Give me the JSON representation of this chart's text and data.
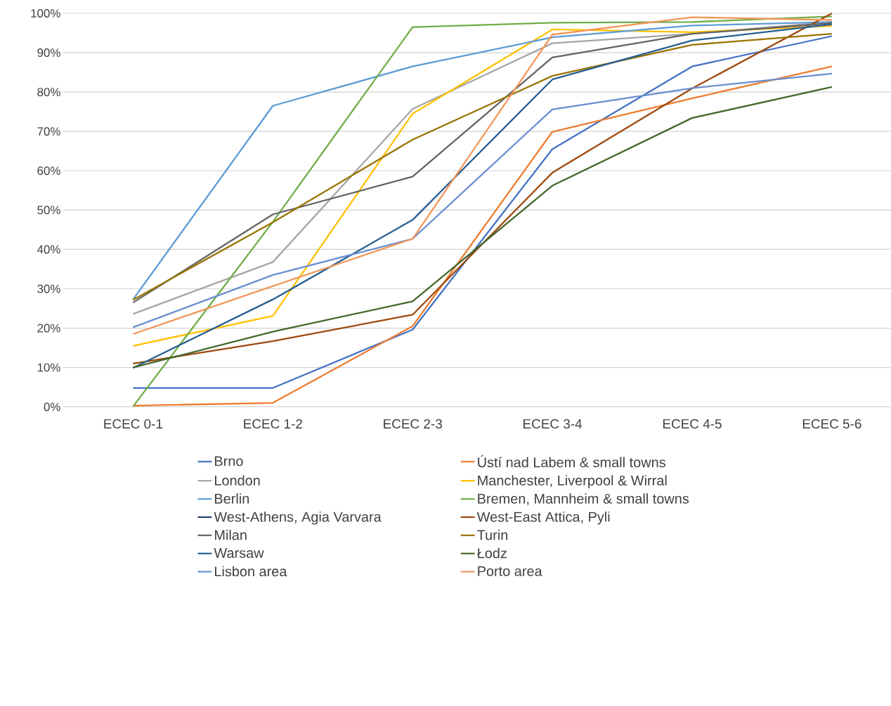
{
  "chart_data": {
    "type": "line",
    "categories": [
      "ECEC 0-1",
      "ECEC 1-2",
      "ECEC 2-3",
      "ECEC 3-4",
      "ECEC 4-5",
      "ECEC 5-6"
    ],
    "ylim": [
      0,
      100
    ],
    "yticks": [
      {
        "value": 0,
        "label": "0%"
      },
      {
        "value": 10,
        "label": "10%"
      },
      {
        "value": 20,
        "label": "20%"
      },
      {
        "value": 30,
        "label": "30%"
      },
      {
        "value": 40,
        "label": "40%"
      },
      {
        "value": 50,
        "label": "50%"
      },
      {
        "value": 60,
        "label": "60%"
      },
      {
        "value": 70,
        "label": "70%"
      },
      {
        "value": 80,
        "label": "80%"
      },
      {
        "value": 90,
        "label": "90%"
      },
      {
        "value": 100,
        "label": "100%"
      }
    ],
    "grid": "y",
    "legend": "bottom",
    "marker": "none",
    "line_style": "solid",
    "series": [
      {
        "name": "Brno",
        "color": "#4472c4",
        "values": [
          4.8,
          4.8,
          19.6,
          65.5,
          86.5,
          94.2
        ]
      },
      {
        "name": "Ústí nad Labem & small towns",
        "color": "#ed7d31",
        "values": [
          0.3,
          1.0,
          20.5,
          69.9,
          78.4,
          86.5
        ]
      },
      {
        "name": "London",
        "color": "#a5a5a5",
        "values": [
          23.6,
          36.8,
          75.7,
          92.4,
          94.8,
          97.8
        ]
      },
      {
        "name": "Manchester, Liverpool & Wirral",
        "color": "#ffc000",
        "values": [
          15.5,
          23.1,
          74.5,
          95.9,
          95.2,
          96.8
        ]
      },
      {
        "name": "Berlin",
        "color": "#5b9bd5",
        "values": [
          27.3,
          76.5,
          86.5,
          93.9,
          96.9,
          97.8
        ]
      },
      {
        "name": "Bremen, Mannheim & small towns",
        "color": "#70ad47",
        "values": [
          0.1,
          47.0,
          96.5,
          97.6,
          97.8,
          99.2
        ]
      },
      {
        "name": "West-Athens, Agia Varvara",
        "color": "#264478",
        "values": [
          null,
          null,
          null,
          null,
          null,
          null
        ]
      },
      {
        "name": "West-East Attica, Pyli",
        "color": "#9e480e",
        "values": [
          11.0,
          16.7,
          23.4,
          59.5,
          80.9,
          100.0
        ]
      },
      {
        "name": "Milan",
        "color": "#636363",
        "values": [
          26.5,
          48.9,
          58.5,
          88.8,
          94.8,
          97.5
        ]
      },
      {
        "name": "Turin",
        "color": "#997300",
        "values": [
          27.2,
          46.9,
          67.9,
          84.1,
          92.0,
          94.8
        ]
      },
      {
        "name": "Warsaw",
        "color": "#255e91",
        "values": [
          9.9,
          27.3,
          47.5,
          83.2,
          93.1,
          97.2
        ]
      },
      {
        "name": "Łodz",
        "color": "#43682b",
        "values": [
          10.0,
          19.1,
          26.8,
          56.2,
          73.4,
          81.3
        ]
      },
      {
        "name": "Lisbon area",
        "color": "#698ed0",
        "values": [
          20.2,
          33.5,
          42.7,
          75.6,
          81.0,
          84.7
        ]
      },
      {
        "name": "Porto area",
        "color": "#f1975a",
        "values": [
          18.5,
          30.7,
          42.7,
          94.6,
          99.0,
          98.3
        ]
      }
    ]
  }
}
